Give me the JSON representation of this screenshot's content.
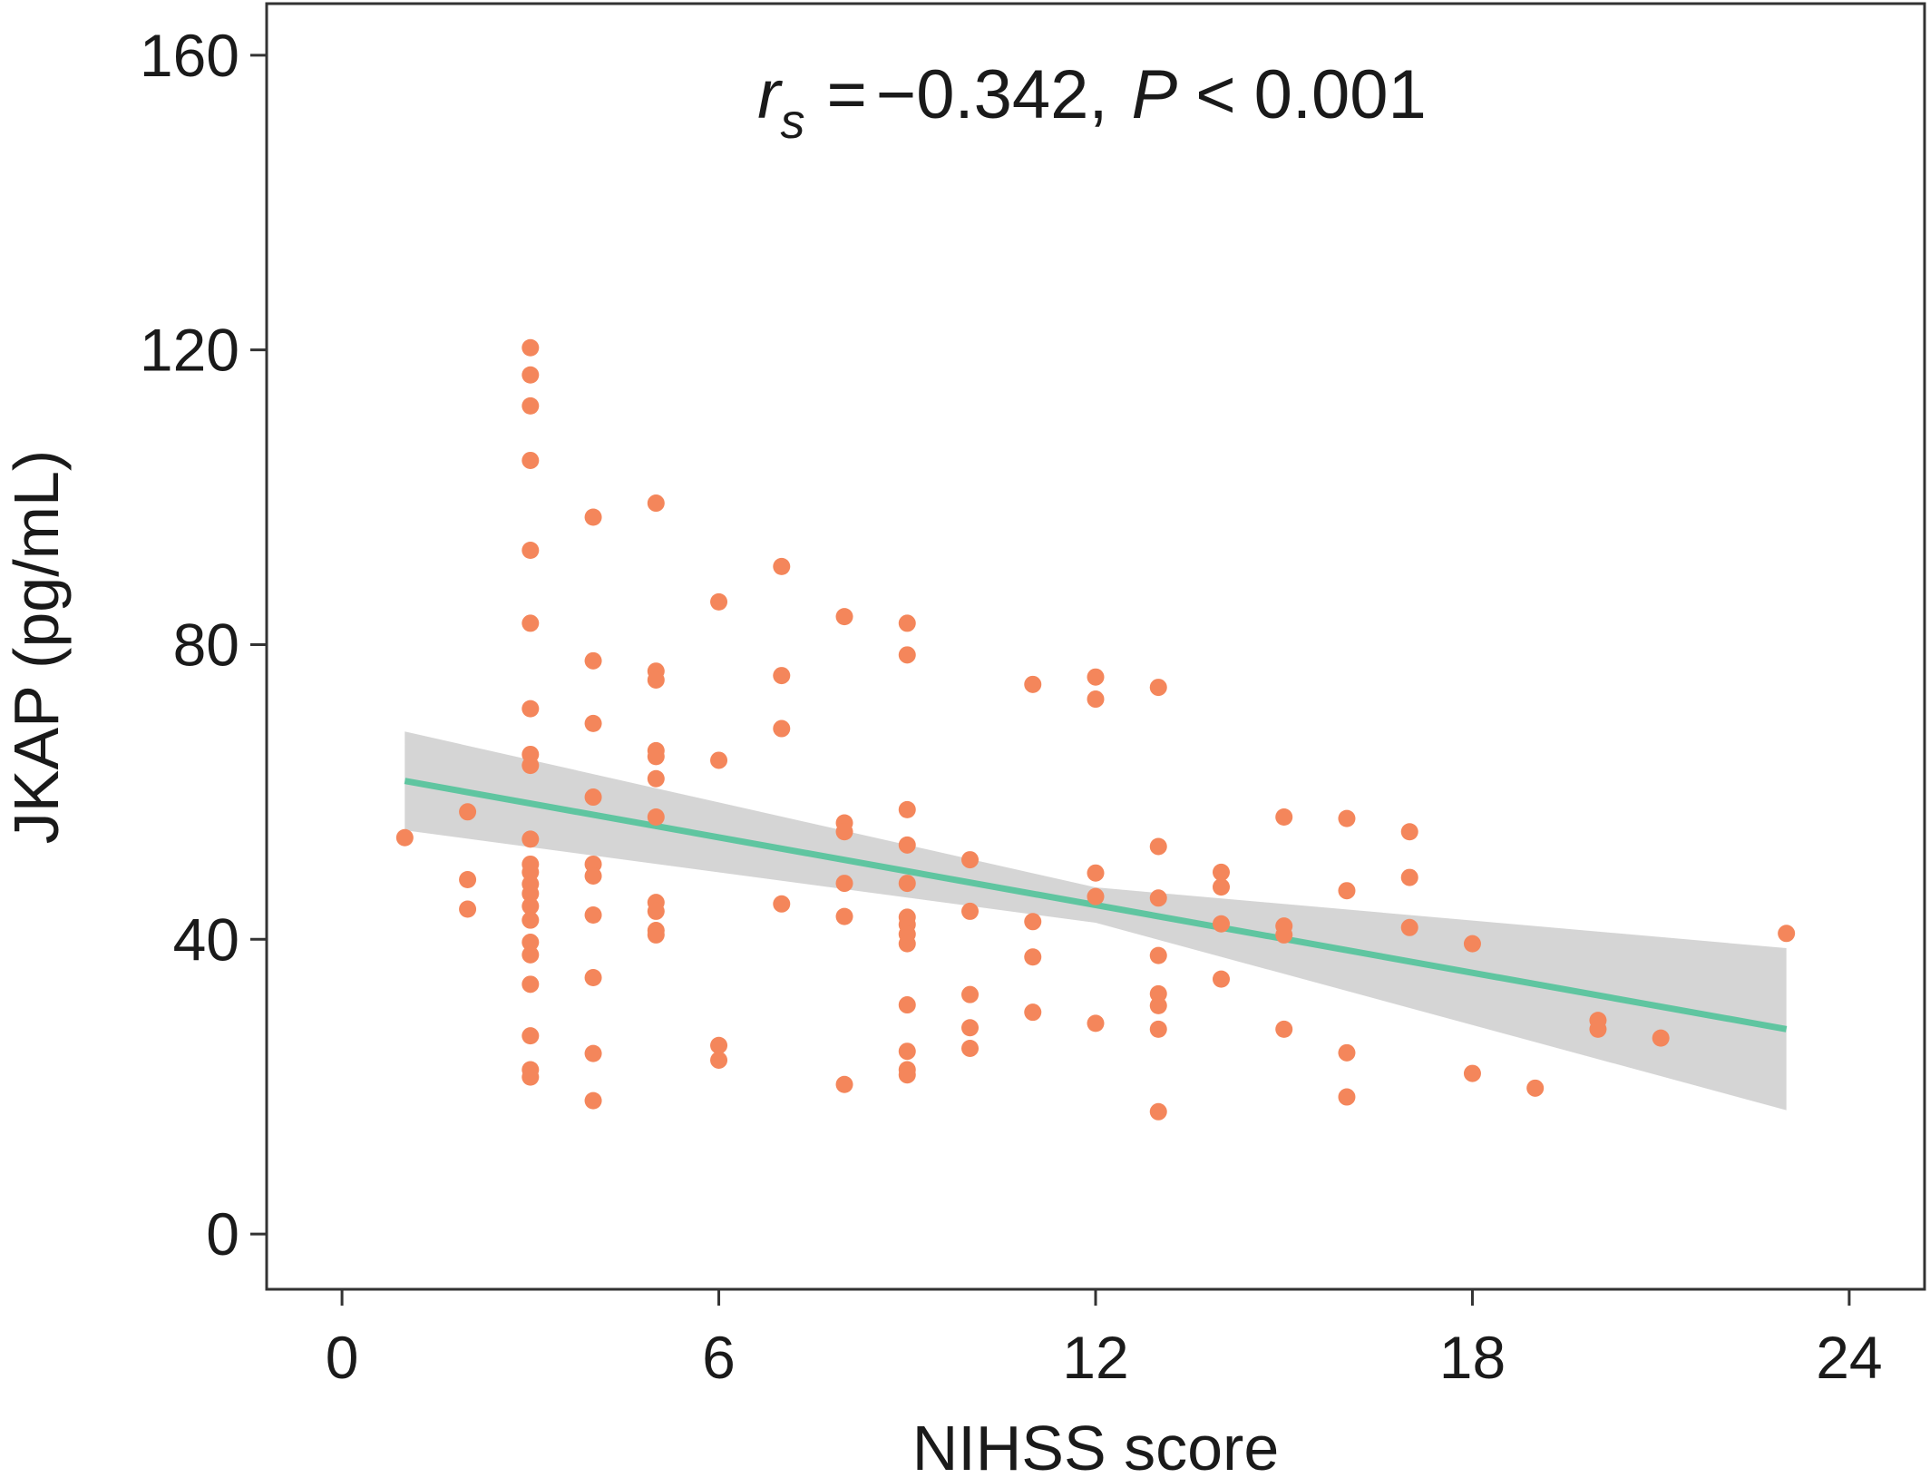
{
  "chart_data": {
    "type": "scatter",
    "xlabel": "NIHSS score",
    "ylabel": "JKAP (pg/mL)",
    "annotation": {
      "stat_symbol": "r",
      "stat_subscript": "s",
      "equals": "=",
      "r_value": "−0.342,",
      "p_symbol": "P",
      "less_than": "<",
      "p_value": "0.001"
    },
    "xlim": [
      -1.2,
      25.2
    ],
    "ylim": [
      -7.5,
      167
    ],
    "x_ticks": [
      0,
      6,
      12,
      18,
      24
    ],
    "y_ticks": [
      0,
      40,
      80,
      120,
      160
    ],
    "x_tick_labels": [
      "0",
      "6",
      "12",
      "18",
      "24"
    ],
    "y_tick_labels": [
      "0",
      "40",
      "80",
      "120",
      "160"
    ],
    "grid": false,
    "colors": {
      "points": "#F4865B",
      "fit_line": "#5FC5A0",
      "confidence_band": "#D3D3D3",
      "frame": "#333333"
    },
    "fit": {
      "method": "linear",
      "x_range": [
        1,
        23
      ],
      "y_at_start": 61.5,
      "y_at_end": 27.8,
      "ci_lower_at_start": 54.8,
      "ci_upper_at_start": 68.2,
      "ci_lower_at_end": 16.8,
      "ci_upper_at_end": 38.8
    },
    "points": [
      [
        1,
        53.8
      ],
      [
        2,
        57.3
      ],
      [
        2,
        48.1
      ],
      [
        2,
        44.1
      ],
      [
        3,
        120.3
      ],
      [
        3,
        116.6
      ],
      [
        3,
        112.4
      ],
      [
        3,
        105.0
      ],
      [
        3,
        92.8
      ],
      [
        3,
        82.9
      ],
      [
        3,
        71.3
      ],
      [
        3,
        65.1
      ],
      [
        3,
        63.6
      ],
      [
        3,
        53.6
      ],
      [
        3,
        50.2
      ],
      [
        3,
        49.1
      ],
      [
        3,
        47.5
      ],
      [
        3,
        46.2
      ],
      [
        3,
        44.5
      ],
      [
        3,
        42.6
      ],
      [
        3,
        39.6
      ],
      [
        3,
        37.9
      ],
      [
        3,
        33.9
      ],
      [
        3,
        26.9
      ],
      [
        3,
        22.3
      ],
      [
        3,
        21.3
      ],
      [
        4,
        97.3
      ],
      [
        4,
        77.8
      ],
      [
        4,
        69.3
      ],
      [
        4,
        59.3
      ],
      [
        4,
        50.2
      ],
      [
        4,
        48.6
      ],
      [
        4,
        43.3
      ],
      [
        4,
        34.8
      ],
      [
        4,
        24.5
      ],
      [
        4,
        18.1
      ],
      [
        5,
        99.2
      ],
      [
        5,
        76.4
      ],
      [
        5,
        75.2
      ],
      [
        5,
        65.6
      ],
      [
        5,
        64.8
      ],
      [
        5,
        61.8
      ],
      [
        5,
        56.6
      ],
      [
        5,
        45.0
      ],
      [
        5,
        43.8
      ],
      [
        5,
        41.2
      ],
      [
        5,
        40.6
      ],
      [
        6,
        85.8
      ],
      [
        6,
        64.3
      ],
      [
        6,
        25.6
      ],
      [
        6,
        23.6
      ],
      [
        7,
        90.6
      ],
      [
        7,
        75.8
      ],
      [
        7,
        68.6
      ],
      [
        7,
        44.8
      ],
      [
        8,
        83.8
      ],
      [
        8,
        55.8
      ],
      [
        8,
        54.6
      ],
      [
        8,
        47.6
      ],
      [
        8,
        43.1
      ],
      [
        8,
        20.3
      ],
      [
        9,
        82.9
      ],
      [
        9,
        78.6
      ],
      [
        9,
        57.6
      ],
      [
        9,
        52.8
      ],
      [
        9,
        47.6
      ],
      [
        9,
        43.0
      ],
      [
        9,
        42.0
      ],
      [
        9,
        40.7
      ],
      [
        9,
        39.4
      ],
      [
        9,
        31.1
      ],
      [
        9,
        24.8
      ],
      [
        9,
        22.3
      ],
      [
        9,
        21.6
      ],
      [
        10,
        50.8
      ],
      [
        10,
        43.8
      ],
      [
        10,
        32.5
      ],
      [
        10,
        28.0
      ],
      [
        10,
        25.2
      ],
      [
        11,
        74.6
      ],
      [
        11,
        42.4
      ],
      [
        11,
        37.6
      ],
      [
        11,
        30.1
      ],
      [
        12,
        75.6
      ],
      [
        12,
        72.6
      ],
      [
        12,
        49.0
      ],
      [
        12,
        45.8
      ],
      [
        12,
        28.6
      ],
      [
        13,
        74.2
      ],
      [
        13,
        52.6
      ],
      [
        13,
        45.6
      ],
      [
        13,
        37.8
      ],
      [
        13,
        32.6
      ],
      [
        13,
        31.0
      ],
      [
        13,
        27.8
      ],
      [
        13,
        16.6
      ],
      [
        14,
        49.1
      ],
      [
        14,
        47.1
      ],
      [
        14,
        42.1
      ],
      [
        14,
        34.6
      ],
      [
        15,
        56.6
      ],
      [
        15,
        41.8
      ],
      [
        15,
        40.6
      ],
      [
        15,
        27.8
      ],
      [
        16,
        56.4
      ],
      [
        16,
        46.6
      ],
      [
        16,
        24.6
      ],
      [
        16,
        18.6
      ],
      [
        17,
        54.6
      ],
      [
        17,
        48.4
      ],
      [
        17,
        41.6
      ],
      [
        18,
        39.4
      ],
      [
        18,
        21.8
      ],
      [
        19,
        19.8
      ],
      [
        20,
        29.0
      ],
      [
        20,
        27.8
      ],
      [
        21,
        26.6
      ],
      [
        23,
        40.8
      ]
    ]
  }
}
